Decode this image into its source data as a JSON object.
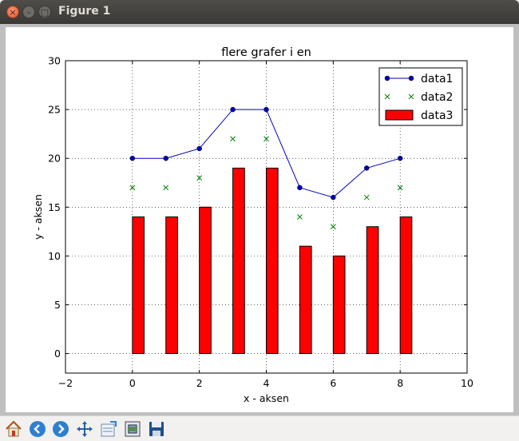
{
  "window": {
    "title": "Figure 1"
  },
  "toolbar": {
    "buttons": [
      {
        "name": "home-icon",
        "label": "Home"
      },
      {
        "name": "back-icon",
        "label": "Back"
      },
      {
        "name": "forward-icon",
        "label": "Forward"
      },
      {
        "name": "pan-icon",
        "label": "Pan"
      },
      {
        "name": "subplots-icon",
        "label": "Configure subplots"
      },
      {
        "name": "zoom-icon",
        "label": "Zoom"
      },
      {
        "name": "save-icon",
        "label": "Save"
      }
    ]
  },
  "chart_data": {
    "type": "bar",
    "title": "flere grafer i en",
    "xlabel": "x - aksen",
    "ylabel": "y - aksen",
    "xlim": [
      -2,
      10
    ],
    "ylim": [
      -2,
      30
    ],
    "xticks": [
      -2,
      0,
      2,
      4,
      6,
      8,
      10
    ],
    "yticks": [
      0,
      5,
      10,
      15,
      20,
      25,
      30
    ],
    "grid": true,
    "legend_position": "top-right",
    "bar_width": 0.35,
    "series": [
      {
        "name": "data1",
        "kind": "line",
        "marker": "circle",
        "color": "#0000bf",
        "x": [
          0,
          1,
          2,
          3,
          4,
          5,
          6,
          7,
          8
        ],
        "values": [
          20,
          20,
          21,
          25,
          25,
          17,
          16,
          19,
          20
        ]
      },
      {
        "name": "data2",
        "kind": "scatter",
        "marker": "x",
        "color": "#008000",
        "x": [
          0,
          1,
          2,
          3,
          4,
          5,
          6,
          7,
          8
        ],
        "values": [
          17,
          17,
          18,
          22,
          22,
          14,
          13,
          16,
          17
        ]
      },
      {
        "name": "data3",
        "kind": "bar",
        "color": "#ff0000",
        "x": [
          0,
          1,
          2,
          3,
          4,
          5,
          6,
          7,
          8
        ],
        "values": [
          14,
          14,
          15,
          19,
          19,
          11,
          10,
          13,
          14
        ]
      }
    ]
  }
}
